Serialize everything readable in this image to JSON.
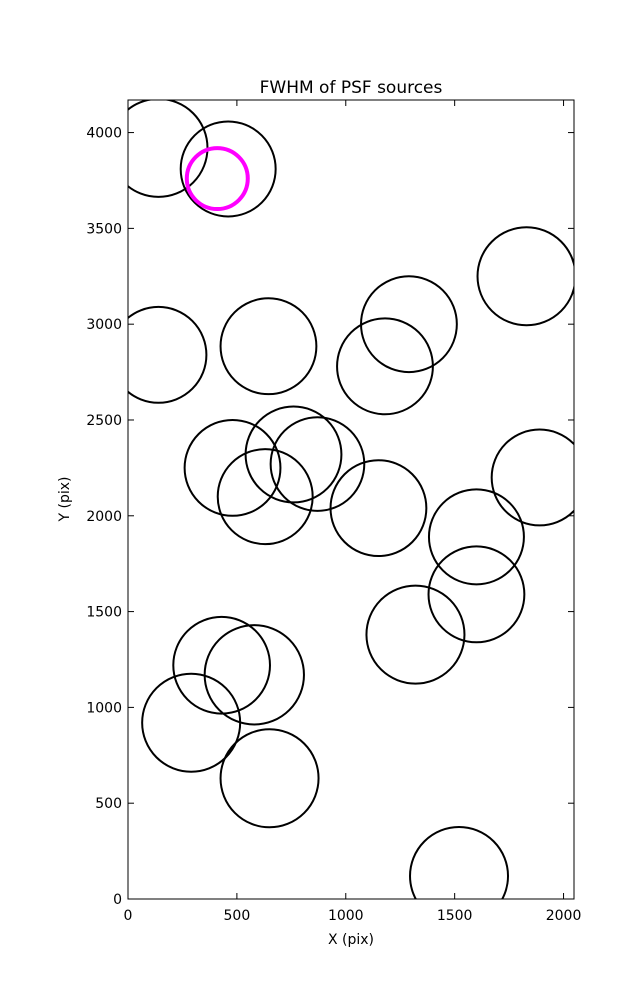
{
  "chart_data": {
    "type": "scatter",
    "title": "FWHM of PSF sources",
    "xlabel": "X (pix)",
    "ylabel": "Y (pix)",
    "xlim": [
      0,
      2048
    ],
    "ylim": [
      0,
      4170
    ],
    "xticks": [
      0,
      500,
      1000,
      1500,
      2000
    ],
    "yticks": [
      0,
      500,
      1000,
      1500,
      2000,
      2500,
      3000,
      3500,
      4000
    ],
    "grid": false,
    "marker": "open-circle",
    "sources": [
      {
        "x": 140,
        "y": 3920,
        "r": 225
      },
      {
        "x": 460,
        "y": 3810,
        "r": 218
      },
      {
        "x": 1830,
        "y": 3250,
        "r": 225
      },
      {
        "x": 1290,
        "y": 3000,
        "r": 220
      },
      {
        "x": 140,
        "y": 2840,
        "r": 220
      },
      {
        "x": 645,
        "y": 2885,
        "r": 220
      },
      {
        "x": 1180,
        "y": 2780,
        "r": 220
      },
      {
        "x": 480,
        "y": 2250,
        "r": 220
      },
      {
        "x": 760,
        "y": 2320,
        "r": 220
      },
      {
        "x": 870,
        "y": 2270,
        "r": 215
      },
      {
        "x": 630,
        "y": 2100,
        "r": 218
      },
      {
        "x": 1150,
        "y": 2040,
        "r": 220
      },
      {
        "x": 1890,
        "y": 2200,
        "r": 220
      },
      {
        "x": 1600,
        "y": 1890,
        "r": 218
      },
      {
        "x": 1600,
        "y": 1590,
        "r": 220
      },
      {
        "x": 1320,
        "y": 1380,
        "r": 225
      },
      {
        "x": 430,
        "y": 1220,
        "r": 222
      },
      {
        "x": 580,
        "y": 1170,
        "r": 228
      },
      {
        "x": 290,
        "y": 920,
        "r": 225
      },
      {
        "x": 650,
        "y": 630,
        "r": 225
      },
      {
        "x": 1520,
        "y": 120,
        "r": 225
      }
    ],
    "highlight": {
      "x": 410,
      "y": 3760,
      "r": 140,
      "color": "#ff00ff"
    },
    "colors": {
      "source": "#000000",
      "axes": "#000000",
      "background": "#ffffff"
    }
  }
}
